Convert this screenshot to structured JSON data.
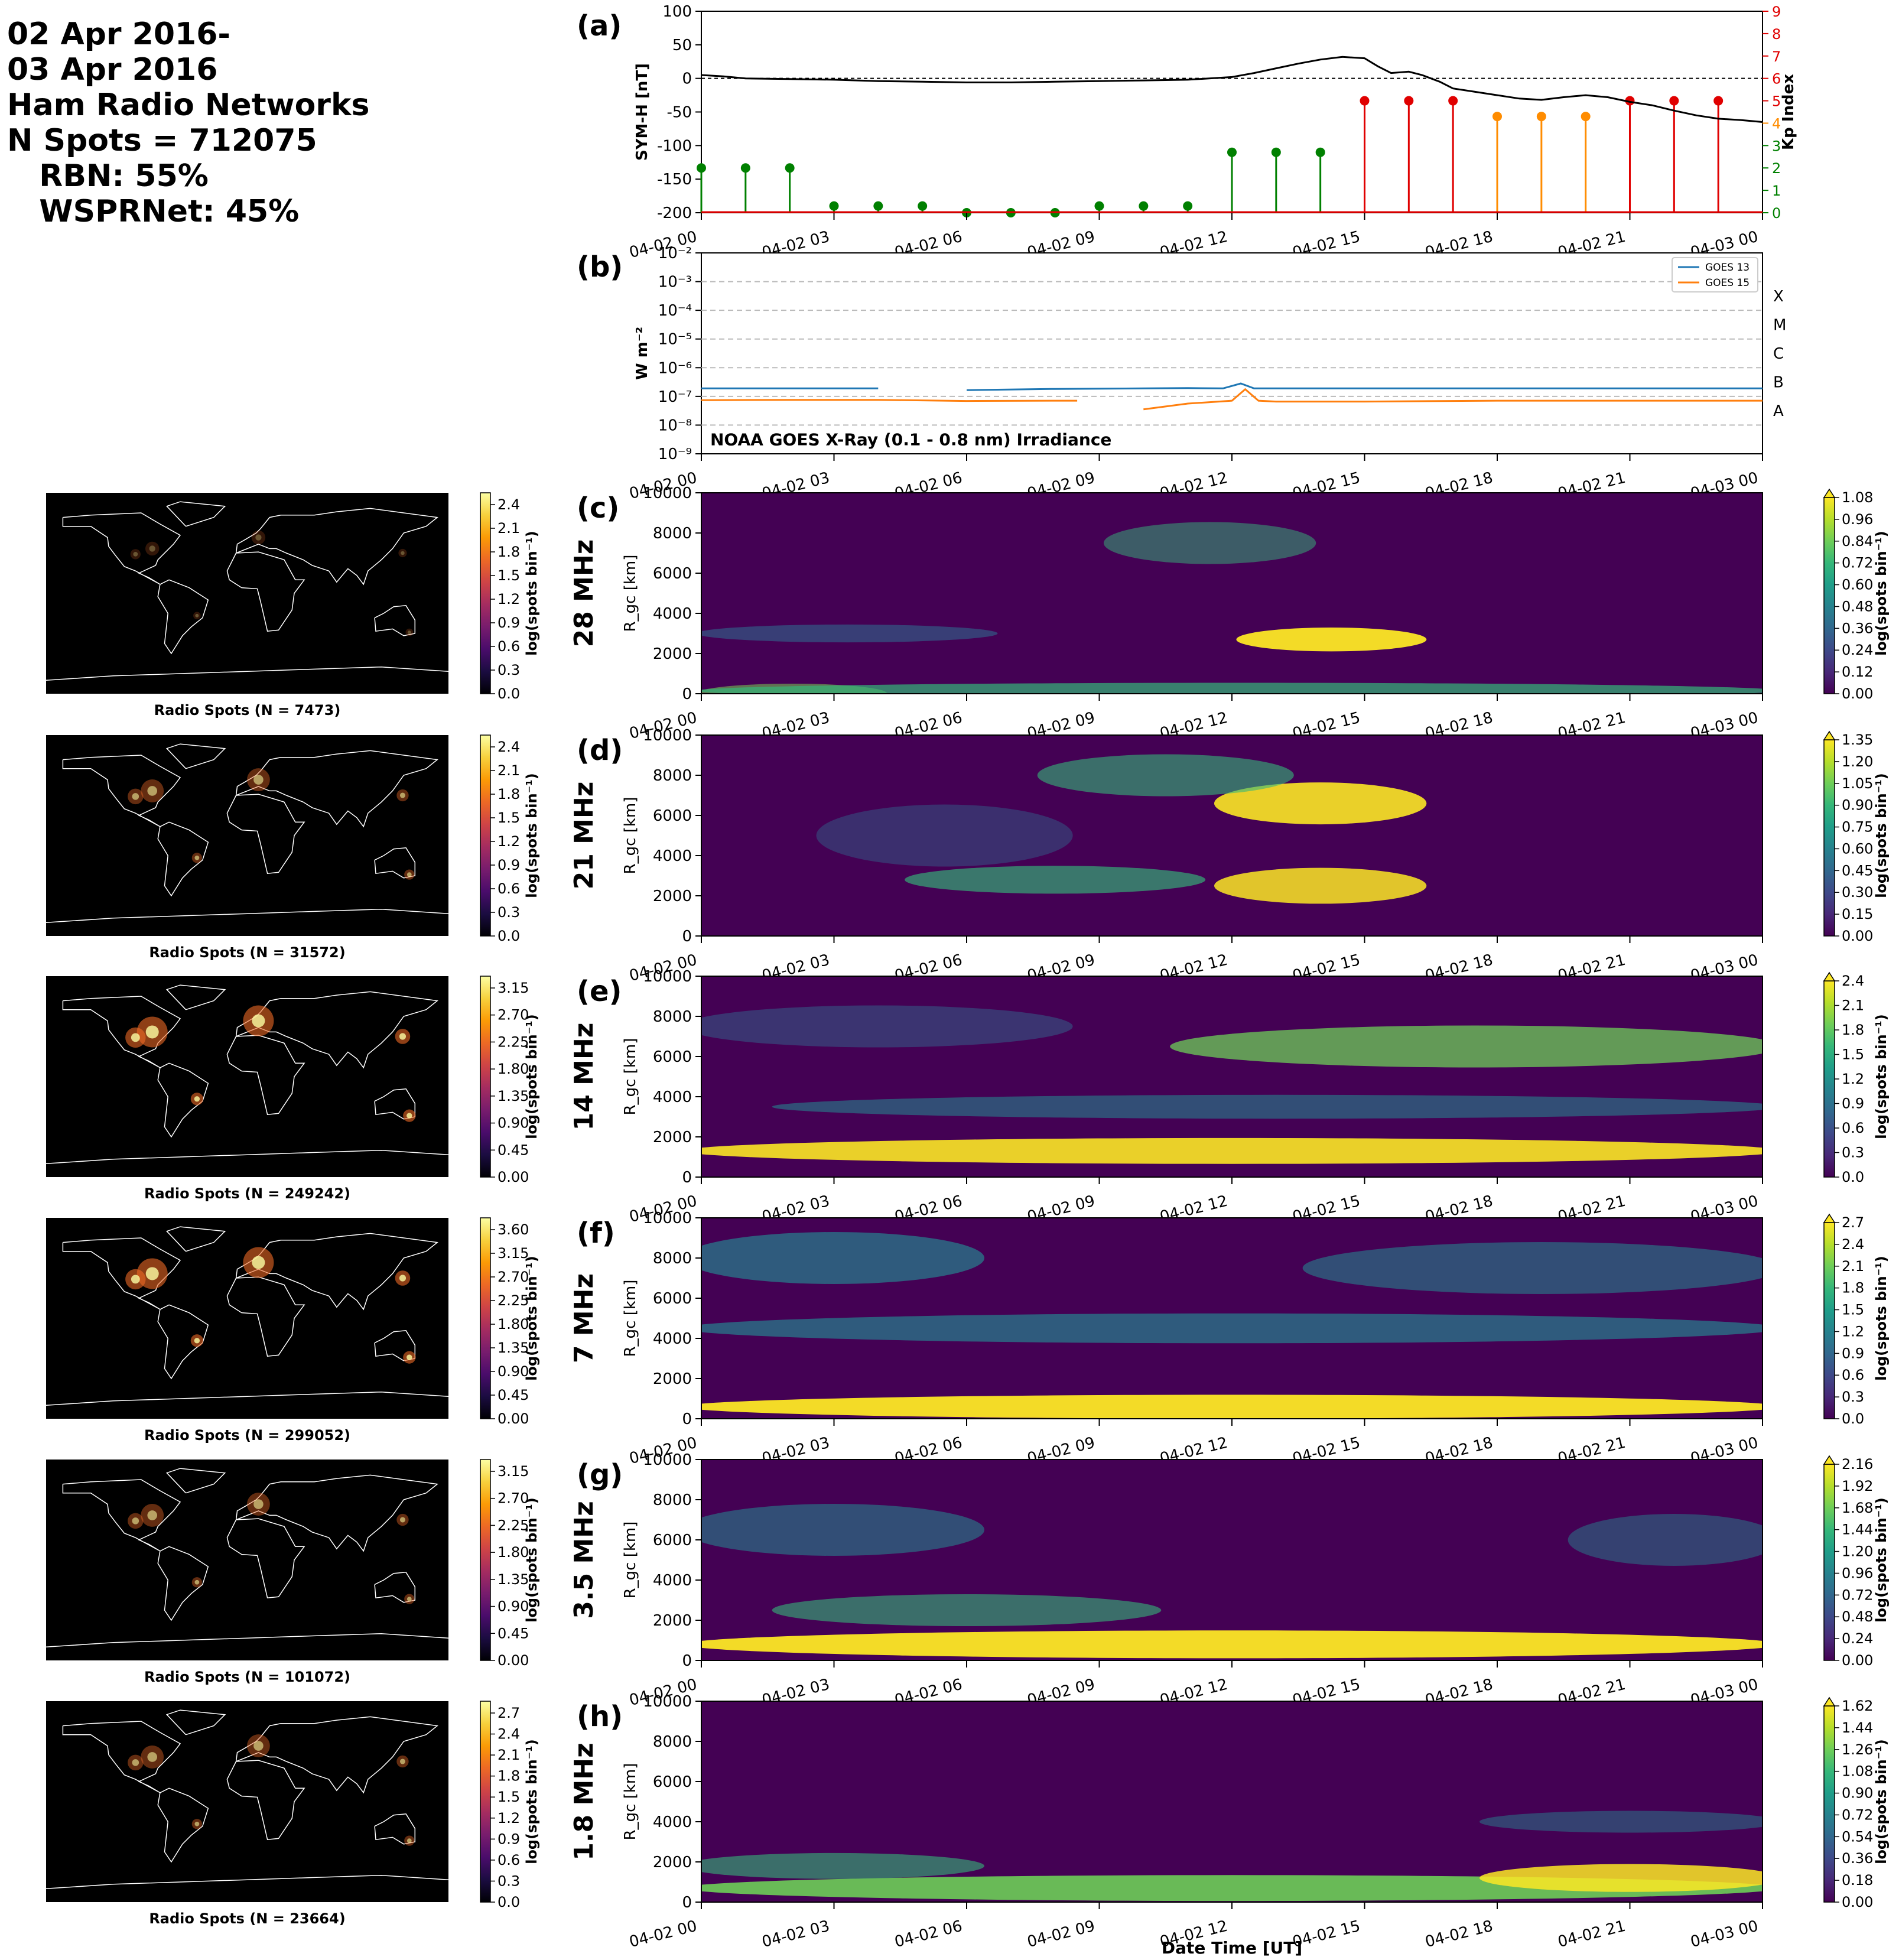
{
  "header": {
    "lines": [
      "02 Apr 2016-",
      "03 Apr 2016",
      "Ham Radio Networks",
      "N Spots = 712075",
      "   RBN: 55%",
      "   WSPRNet: 45%"
    ]
  },
  "time_ticks": [
    "04-02 00",
    "04-02 03",
    "04-02 06",
    "04-02 09",
    "04-02 12",
    "04-02 15",
    "04-02 18",
    "04-02 21",
    "04-03 00"
  ],
  "x_axis_label": "Date Time [UT]",
  "colors": {
    "symh": "#000000",
    "kp_green": "#008000",
    "kp_orange": "#ff8c00",
    "kp_red": "#e00000",
    "goes13": "#1f77b4",
    "goes15": "#ff7f0e",
    "viridis_low": "#440154",
    "viridis_high": "#fde725"
  },
  "chart_data": [
    {
      "panel": "(a)",
      "type": "line",
      "ylabel": "SYM-H [nT]",
      "ylabel_right": "Kp Index",
      "ylim": [
        -200,
        100
      ],
      "yticks": [
        "100",
        "50",
        "0",
        "-50",
        "-100",
        "-150",
        "-200"
      ],
      "ylim_right": [
        0,
        9
      ],
      "yticks_right": [
        "0",
        "1",
        "2",
        "3",
        "4",
        "5",
        "6",
        "7",
        "8",
        "9"
      ],
      "xlim_hours": [
        0,
        24
      ],
      "symh": {
        "x_hours": [
          0,
          0.5,
          1,
          2,
          3,
          4,
          5,
          6,
          7,
          8,
          9,
          10,
          11,
          12,
          12.5,
          13,
          13.5,
          14,
          14.5,
          15,
          15.3,
          15.6,
          16,
          16.3,
          16.7,
          17,
          17.5,
          18,
          18.5,
          19,
          19.5,
          20,
          20.5,
          21,
          21.5,
          22,
          22.5,
          23,
          23.5,
          24
        ],
        "values": [
          5,
          3,
          0,
          -1,
          -2,
          -4,
          -5,
          -6,
          -6,
          -5,
          -4,
          -3,
          -2,
          2,
          8,
          15,
          22,
          28,
          32,
          30,
          18,
          8,
          10,
          5,
          -5,
          -15,
          -20,
          -25,
          -30,
          -32,
          -28,
          -25,
          -28,
          -35,
          -40,
          -48,
          -55,
          -60,
          -62,
          -65
        ]
      },
      "kp": {
        "x_hours": [
          0,
          1,
          2,
          3,
          4,
          5,
          6,
          7,
          8,
          9,
          10,
          11,
          12,
          13,
          14,
          15,
          16,
          17,
          18,
          19,
          20,
          21,
          22,
          23
        ],
        "values": [
          2,
          2,
          2,
          0.3,
          0.3,
          0.3,
          0,
          0,
          0,
          0.3,
          0.3,
          0.3,
          2.7,
          2.7,
          2.7,
          5,
          5,
          5,
          4.3,
          4.3,
          4.3,
          5,
          5,
          5
        ],
        "categories": [
          "green",
          "green",
          "green",
          "green",
          "green",
          "green",
          "green",
          "green",
          "green",
          "green",
          "green",
          "green",
          "green",
          "green",
          "green",
          "red",
          "red",
          "red",
          "orange",
          "orange",
          "orange",
          "red",
          "red",
          "red"
        ]
      }
    },
    {
      "panel": "(b)",
      "type": "line",
      "ylabel": "W m⁻²",
      "annotation": "NOAA GOES X-Ray (0.1 - 0.8 nm) Irradiance",
      "y_log": true,
      "ylim_exp": [
        -9,
        -2
      ],
      "yticks": [
        "10⁻⁹",
        "10⁻⁸",
        "10⁻⁷",
        "10⁻⁶",
        "10⁻⁵",
        "10⁻⁴",
        "10⁻³",
        "10⁻²"
      ],
      "class_labels": [
        "A",
        "B",
        "C",
        "M",
        "X"
      ],
      "legend_position": "top-right",
      "series": [
        {
          "name": "GOES 13",
          "x_hours": [
            0,
            2,
            4,
            4.5,
            5.5,
            6,
            8,
            10,
            11,
            11.8,
            12.2,
            12.5,
            13,
            15,
            18,
            21,
            24
          ],
          "log_values": [
            -6.72,
            -6.72,
            -6.72,
            null,
            null,
            -6.78,
            -6.74,
            -6.72,
            -6.71,
            -6.72,
            -6.55,
            -6.72,
            -6.72,
            -6.72,
            -6.72,
            -6.72,
            -6.72
          ]
        },
        {
          "name": "GOES 15",
          "x_hours": [
            0,
            2,
            4,
            6,
            8,
            8.5,
            9.5,
            10,
            11,
            11.5,
            12,
            12.3,
            12.6,
            13,
            15,
            18,
            21,
            24
          ],
          "log_values": [
            -7.13,
            -7.12,
            -7.12,
            -7.16,
            -7.15,
            -7.15,
            null,
            -7.45,
            -7.25,
            -7.2,
            -7.15,
            -6.75,
            -7.15,
            -7.18,
            -7.18,
            -7.15,
            -7.15,
            -7.15
          ]
        }
      ]
    },
    {
      "panel": "(c)",
      "type": "heatmap",
      "row_label": "28 MHz",
      "ylabel": "R_gc [km]",
      "ylim": [
        0,
        10000
      ],
      "yticks": [
        "0",
        "2000",
        "4000",
        "6000",
        "8000",
        "10000"
      ],
      "cbar_label": "log(spots bin⁻¹)",
      "cbar_max": 1.08,
      "cbar_ticks": [
        "0.00",
        "0.12",
        "0.24",
        "0.36",
        "0.48",
        "0.60",
        "0.72",
        "0.84",
        "0.96",
        "1.08"
      ],
      "map_caption": "Radio Spots (N = 7473)",
      "map_cbar_ticks": [
        "0.0",
        "0.3",
        "0.6",
        "0.9",
        "1.2",
        "1.5",
        "1.8",
        "2.1",
        "2.4"
      ]
    },
    {
      "panel": "(d)",
      "type": "heatmap",
      "row_label": "21 MHz",
      "ylabel": "R_gc [km]",
      "ylim": [
        0,
        10000
      ],
      "yticks": [
        "0",
        "2000",
        "4000",
        "6000",
        "8000",
        "10000"
      ],
      "cbar_label": "log(spots bin⁻¹)",
      "cbar_max": 1.35,
      "cbar_ticks": [
        "0.00",
        "0.15",
        "0.30",
        "0.45",
        "0.60",
        "0.75",
        "0.90",
        "1.05",
        "1.20",
        "1.35"
      ],
      "map_caption": "Radio Spots (N = 31572)",
      "map_cbar_ticks": [
        "0.0",
        "0.3",
        "0.6",
        "0.9",
        "1.2",
        "1.5",
        "1.8",
        "2.1",
        "2.4"
      ]
    },
    {
      "panel": "(e)",
      "type": "heatmap",
      "row_label": "14 MHz",
      "ylabel": "R_gc [km]",
      "ylim": [
        0,
        10000
      ],
      "yticks": [
        "0",
        "2000",
        "4000",
        "6000",
        "8000",
        "10000"
      ],
      "cbar_label": "log(spots bin⁻¹)",
      "cbar_max": 2.4,
      "cbar_ticks": [
        "0.0",
        "0.3",
        "0.6",
        "0.9",
        "1.2",
        "1.5",
        "1.8",
        "2.1",
        "2.4"
      ],
      "map_caption": "Radio Spots (N = 249242)",
      "map_cbar_ticks": [
        "0.00",
        "0.45",
        "0.90",
        "1.35",
        "1.80",
        "2.25",
        "2.70",
        "3.15"
      ]
    },
    {
      "panel": "(f)",
      "type": "heatmap",
      "row_label": "7 MHz",
      "ylabel": "R_gc [km]",
      "ylim": [
        0,
        10000
      ],
      "yticks": [
        "0",
        "2000",
        "4000",
        "6000",
        "8000",
        "10000"
      ],
      "cbar_label": "log(spots bin⁻¹)",
      "cbar_max": 2.7,
      "cbar_ticks": [
        "0.0",
        "0.3",
        "0.6",
        "0.9",
        "1.2",
        "1.5",
        "1.8",
        "2.1",
        "2.4",
        "2.7"
      ],
      "map_caption": "Radio Spots (N = 299052)",
      "map_cbar_ticks": [
        "0.00",
        "0.45",
        "0.90",
        "1.35",
        "1.80",
        "2.25",
        "2.70",
        "3.15",
        "3.60"
      ]
    },
    {
      "panel": "(g)",
      "type": "heatmap",
      "row_label": "3.5 MHz",
      "ylabel": "R_gc [km]",
      "ylim": [
        0,
        10000
      ],
      "yticks": [
        "0",
        "2000",
        "4000",
        "6000",
        "8000",
        "10000"
      ],
      "cbar_label": "log(spots bin⁻¹)",
      "cbar_max": 2.16,
      "cbar_ticks": [
        "0.00",
        "0.24",
        "0.48",
        "0.72",
        "0.96",
        "1.20",
        "1.44",
        "1.68",
        "1.92",
        "2.16"
      ],
      "map_caption": "Radio Spots (N = 101072)",
      "map_cbar_ticks": [
        "0.00",
        "0.45",
        "0.90",
        "1.35",
        "1.80",
        "2.25",
        "2.70",
        "3.15"
      ]
    },
    {
      "panel": "(h)",
      "type": "heatmap",
      "row_label": "1.8 MHz",
      "ylabel": "R_gc [km]",
      "ylim": [
        0,
        10000
      ],
      "yticks": [
        "0",
        "2000",
        "4000",
        "6000",
        "8000",
        "10000"
      ],
      "cbar_label": "log(spots bin⁻¹)",
      "cbar_max": 1.62,
      "cbar_ticks": [
        "0.00",
        "0.18",
        "0.36",
        "0.54",
        "0.72",
        "0.90",
        "1.08",
        "1.26",
        "1.44",
        "1.62"
      ],
      "map_caption": "Radio Spots (N = 23664)",
      "map_cbar_ticks": [
        "0.0",
        "0.3",
        "0.6",
        "0.9",
        "1.2",
        "1.5",
        "1.8",
        "2.1",
        "2.4",
        "2.7"
      ]
    }
  ]
}
